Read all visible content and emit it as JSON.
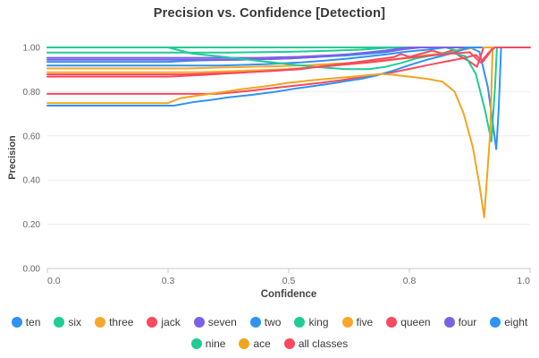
{
  "title": "Precision vs. Confidence [Detection]",
  "axes": {
    "x_label": "Confidence",
    "y_label": "Precision"
  },
  "legend": {
    "rows": [
      [
        "ten",
        "six",
        "three",
        "jack",
        "seven",
        "two",
        "king",
        "five",
        "queen",
        "four",
        "eight"
      ],
      [
        "nine",
        "ace",
        "all classes"
      ]
    ]
  },
  "colors": {
    "blue": "#2E93F5",
    "green": "#1FCC96",
    "orange": "#F7A82B",
    "red": "#F8495F",
    "purple": "#7B61E6",
    "grid": "#ECECEC",
    "axis": "#C8C8C8",
    "tick_text": "#666666"
  },
  "chart_data": {
    "type": "line",
    "title": "Precision vs. Confidence [Detection]",
    "xlabel": "Confidence",
    "ylabel": "Precision",
    "x_ticks": [
      0.0,
      0.3,
      0.5,
      0.8,
      1.0
    ],
    "x_tick_labels": [
      "0.0",
      "0.3",
      "0.5",
      "0.8",
      "1.0"
    ],
    "y_ticks": [
      0.0,
      0.2,
      0.4,
      0.6,
      0.8,
      1.0
    ],
    "y_tick_labels": [
      "0.00",
      "0.20",
      "0.40",
      "0.60",
      "0.80",
      "1.00"
    ],
    "ylim": [
      0.0,
      1.0
    ],
    "grid": "horizontal",
    "legend_position": "bottom",
    "series": [
      {
        "name": "ten",
        "color": "#2E93F5",
        "points": [
          [
            0,
            0.935
          ],
          [
            0.3,
            0.935
          ],
          [
            0.34,
            0.94
          ],
          [
            0.42,
            0.945
          ],
          [
            0.5,
            0.95
          ],
          [
            0.58,
            0.958
          ],
          [
            0.64,
            0.963
          ],
          [
            0.7,
            0.972
          ],
          [
            0.74,
            0.978
          ],
          [
            0.78,
            0.99
          ],
          [
            0.8,
            1.0
          ],
          [
            0.9,
            1.0
          ],
          [
            0.916,
            0.98
          ],
          [
            0.93,
            0.82
          ],
          [
            0.944,
            0.54
          ],
          [
            0.948,
            0.72
          ],
          [
            0.952,
            1.0
          ]
        ]
      },
      {
        "name": "six",
        "color": "#1FCC96",
        "points": [
          [
            0,
            0.977
          ],
          [
            0.4,
            0.977
          ],
          [
            0.5,
            0.98
          ],
          [
            0.6,
            0.985
          ],
          [
            0.68,
            0.99
          ],
          [
            0.76,
            1.0
          ],
          [
            0.91,
            1.0
          ]
        ]
      },
      {
        "name": "three",
        "color": "#F7A82B",
        "points": [
          [
            0,
            0.905
          ],
          [
            0.33,
            0.905
          ],
          [
            0.4,
            0.91
          ],
          [
            0.48,
            0.915
          ],
          [
            0.55,
            0.92
          ],
          [
            0.62,
            0.927
          ],
          [
            0.68,
            0.932
          ],
          [
            0.73,
            0.94
          ],
          [
            0.78,
            0.95
          ],
          [
            0.82,
            0.962
          ],
          [
            0.85,
            0.972
          ],
          [
            0.875,
            0.985
          ],
          [
            0.895,
            1.0
          ],
          [
            0.92,
            1.0
          ]
        ]
      },
      {
        "name": "jack",
        "color": "#F8495F",
        "points": [
          [
            0,
            0.878
          ],
          [
            0.33,
            0.878
          ],
          [
            0.4,
            0.885
          ],
          [
            0.47,
            0.893
          ],
          [
            0.53,
            0.902
          ],
          [
            0.58,
            0.915
          ],
          [
            0.63,
            0.925
          ],
          [
            0.68,
            0.936
          ],
          [
            0.72,
            0.946
          ],
          [
            0.76,
            0.956
          ],
          [
            0.78,
            0.97
          ],
          [
            0.8,
            0.957
          ],
          [
            0.82,
            0.972
          ],
          [
            0.838,
            0.986
          ],
          [
            0.855,
            0.972
          ],
          [
            0.87,
            0.986
          ],
          [
            0.885,
            0.958
          ],
          [
            0.9,
            0.936
          ],
          [
            0.912,
            0.912
          ],
          [
            0.923,
            1.0
          ],
          [
            0.93,
            1.0
          ]
        ]
      },
      {
        "name": "seven",
        "color": "#7B61E6",
        "points": [
          [
            0,
            0.953
          ],
          [
            0.45,
            0.953
          ],
          [
            0.53,
            0.958
          ],
          [
            0.6,
            0.964
          ],
          [
            0.66,
            0.97
          ],
          [
            0.71,
            0.978
          ],
          [
            0.76,
            0.986
          ],
          [
            0.79,
            0.993
          ],
          [
            0.82,
            1.0
          ],
          [
            0.92,
            1.0
          ]
        ]
      },
      {
        "name": "two",
        "color": "#2E93F5",
        "points": [
          [
            0,
            0.918
          ],
          [
            0.38,
            0.918
          ],
          [
            0.46,
            0.924
          ],
          [
            0.53,
            0.932
          ],
          [
            0.59,
            0.94
          ],
          [
            0.65,
            0.95
          ],
          [
            0.7,
            0.96
          ],
          [
            0.75,
            0.97
          ],
          [
            0.79,
            0.98
          ],
          [
            0.83,
            0.99
          ],
          [
            0.86,
            1.0
          ],
          [
            0.91,
            1.0
          ]
        ]
      },
      {
        "name": "king",
        "color": "#1FCC96",
        "points": [
          [
            0,
            1.0
          ],
          [
            0.86,
            1.0
          ],
          [
            0.88,
            0.985
          ],
          [
            0.9,
            1.0
          ],
          [
            0.905,
            1.0
          ]
        ]
      },
      {
        "name": "five",
        "color": "#F7A82B",
        "points": [
          [
            0,
            0.888
          ],
          [
            0.35,
            0.888
          ],
          [
            0.43,
            0.895
          ],
          [
            0.5,
            0.902
          ],
          [
            0.57,
            0.912
          ],
          [
            0.63,
            0.921
          ],
          [
            0.69,
            0.93
          ],
          [
            0.74,
            0.94
          ],
          [
            0.79,
            0.951
          ],
          [
            0.83,
            0.962
          ],
          [
            0.865,
            0.975
          ],
          [
            0.89,
            0.99
          ],
          [
            0.91,
            1.0
          ],
          [
            0.935,
            1.0
          ]
        ]
      },
      {
        "name": "queen",
        "color": "#F8495F",
        "points": [
          [
            0,
            0.79
          ],
          [
            0.38,
            0.79
          ],
          [
            0.43,
            0.802
          ],
          [
            0.48,
            0.818
          ],
          [
            0.53,
            0.83
          ],
          [
            0.58,
            0.84
          ],
          [
            0.63,
            0.852
          ],
          [
            0.68,
            0.866
          ],
          [
            0.72,
            0.877
          ],
          [
            0.76,
            0.888
          ],
          [
            0.8,
            0.903
          ],
          [
            0.83,
            0.92
          ],
          [
            0.86,
            0.936
          ],
          [
            0.89,
            0.952
          ],
          [
            0.91,
            0.966
          ],
          [
            0.922,
            0.936
          ],
          [
            0.932,
            0.972
          ],
          [
            0.938,
            1.0
          ]
        ]
      },
      {
        "name": "four",
        "color": "#7B61E6",
        "points": [
          [
            0,
            0.944
          ],
          [
            0.42,
            0.944
          ],
          [
            0.5,
            0.95
          ],
          [
            0.57,
            0.957
          ],
          [
            0.63,
            0.966
          ],
          [
            0.69,
            0.976
          ],
          [
            0.74,
            0.986
          ],
          [
            0.78,
            0.996
          ],
          [
            0.8,
            1.0
          ],
          [
            0.89,
            1.0
          ]
        ]
      },
      {
        "name": "eight",
        "color": "#2E93F5",
        "points": [
          [
            0,
            0.737
          ],
          [
            0.31,
            0.737
          ],
          [
            0.34,
            0.752
          ],
          [
            0.37,
            0.762
          ],
          [
            0.4,
            0.774
          ],
          [
            0.44,
            0.786
          ],
          [
            0.48,
            0.8
          ],
          [
            0.52,
            0.815
          ],
          [
            0.56,
            0.825
          ],
          [
            0.6,
            0.835
          ],
          [
            0.64,
            0.847
          ],
          [
            0.68,
            0.858
          ],
          [
            0.72,
            0.874
          ],
          [
            0.76,
            0.895
          ],
          [
            0.8,
            0.92
          ],
          [
            0.83,
            0.945
          ],
          [
            0.86,
            0.966
          ],
          [
            0.88,
            0.982
          ],
          [
            0.9,
            1.0
          ],
          [
            0.92,
            1.0
          ]
        ]
      },
      {
        "name": "nine",
        "color": "#1FCC96",
        "points": [
          [
            0,
            1.0
          ],
          [
            0.3,
            1.0
          ],
          [
            0.34,
            0.972
          ],
          [
            0.4,
            0.955
          ],
          [
            0.46,
            0.936
          ],
          [
            0.52,
            0.92
          ],
          [
            0.58,
            0.91
          ],
          [
            0.64,
            0.902
          ],
          [
            0.7,
            0.902
          ],
          [
            0.74,
            0.912
          ],
          [
            0.78,
            0.93
          ],
          [
            0.81,
            0.95
          ],
          [
            0.84,
            0.965
          ],
          [
            0.87,
            0.976
          ],
          [
            0.893,
            0.96
          ],
          [
            0.91,
            0.88
          ],
          [
            0.925,
            0.72
          ],
          [
            0.936,
            0.575
          ],
          [
            0.942,
            0.82
          ],
          [
            0.945,
            1.0
          ],
          [
            0.948,
            1.0
          ]
        ]
      },
      {
        "name": "ace",
        "color": "#F0A51F",
        "points": [
          [
            0,
            0.748
          ],
          [
            0.3,
            0.748
          ],
          [
            0.32,
            0.77
          ],
          [
            0.35,
            0.782
          ],
          [
            0.38,
            0.794
          ],
          [
            0.42,
            0.81
          ],
          [
            0.46,
            0.824
          ],
          [
            0.5,
            0.84
          ],
          [
            0.54,
            0.848
          ],
          [
            0.58,
            0.855
          ],
          [
            0.62,
            0.862
          ],
          [
            0.66,
            0.868
          ],
          [
            0.7,
            0.875
          ],
          [
            0.73,
            0.88
          ],
          [
            0.76,
            0.876
          ],
          [
            0.8,
            0.868
          ],
          [
            0.83,
            0.858
          ],
          [
            0.855,
            0.845
          ],
          [
            0.875,
            0.8
          ],
          [
            0.89,
            0.7
          ],
          [
            0.905,
            0.55
          ],
          [
            0.916,
            0.38
          ],
          [
            0.924,
            0.232
          ],
          [
            0.934,
            0.62
          ],
          [
            0.938,
            1.0
          ],
          [
            0.941,
            1.0
          ]
        ]
      },
      {
        "name": "all classes",
        "color": "#F8495F",
        "points": [
          [
            0,
            0.868
          ],
          [
            0.3,
            0.868
          ],
          [
            0.36,
            0.876
          ],
          [
            0.42,
            0.886
          ],
          [
            0.48,
            0.896
          ],
          [
            0.54,
            0.906
          ],
          [
            0.6,
            0.916
          ],
          [
            0.66,
            0.926
          ],
          [
            0.72,
            0.937
          ],
          [
            0.78,
            0.95
          ],
          [
            0.83,
            0.962
          ],
          [
            0.87,
            0.972
          ],
          [
            0.9,
            0.978
          ],
          [
            0.918,
            0.932
          ],
          [
            0.932,
            0.978
          ],
          [
            0.942,
            1.0
          ],
          [
            1.0,
            1.0
          ]
        ]
      }
    ]
  }
}
